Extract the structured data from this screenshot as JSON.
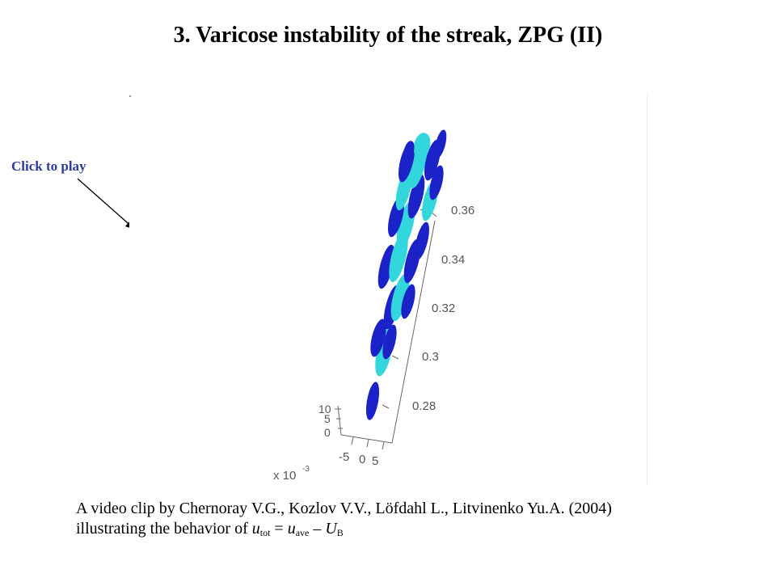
{
  "slide": {
    "title": "3. Varicose instability of the streak, ZPG (II)"
  },
  "click_label": "Click to play",
  "video": {
    "z_ticks": [
      "0.36",
      "0.34",
      "0.32",
      "0.3",
      "0.28"
    ],
    "y_ticks": [
      "10",
      "5",
      "0"
    ],
    "x_ticks": [
      "-5",
      "0",
      "5"
    ],
    "x_multiplier": "x 10",
    "x_multiplier_exp": "-3",
    "colors": {
      "dark_blue": "#1a22c8",
      "cyan": "#33d6dd",
      "axis": "#555555"
    }
  },
  "caption": {
    "line1": "A video clip by Chernoray V.G., Kozlov V.V., Löfdahl L., Litvinenko Yu.A. (2004)",
    "line2_prefix": "illustrating the behavior of ",
    "u_sym": "u",
    "tot_sub": "tot",
    "eq": " = ",
    "ave_sub": "ave",
    "minus": " – ",
    "U_sym": "U",
    "B_sub": "B"
  }
}
